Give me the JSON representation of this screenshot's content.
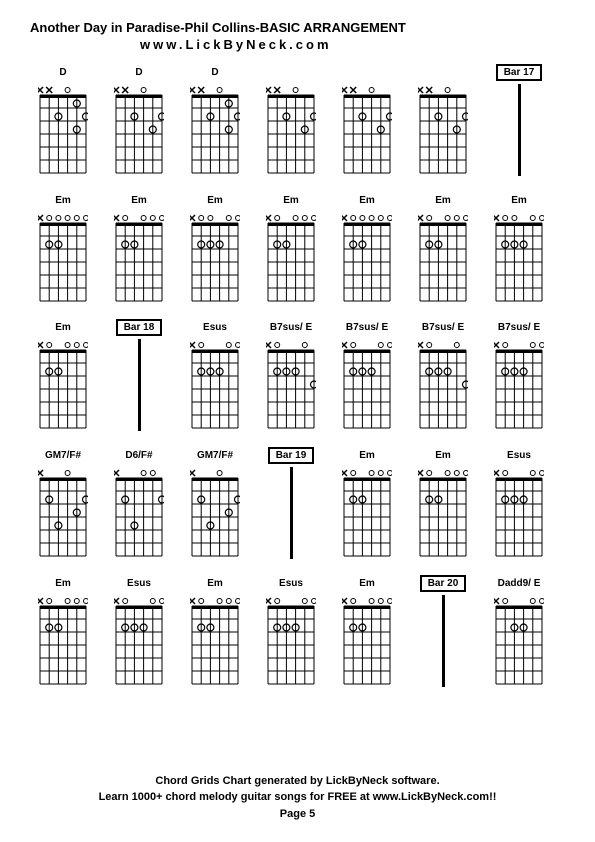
{
  "title": "Another Day in Paradise-Phil Collins-BASIC ARRANGEMENT",
  "subtitle": "www.LickByNeck.com",
  "footer": {
    "line1": "Chord Grids Chart generated by LickByNeck software.",
    "line2": "Learn 1000+ chord melody guitar songs for FREE at www.LickByNeck.com!!",
    "line3": "Page 5"
  },
  "diagram": {
    "width": 50,
    "height": 92,
    "strings": 6,
    "frets": 6,
    "line_color": "#000000",
    "dot_radius": 3.5,
    "mute_size": 6
  },
  "rows": [
    [
      {
        "type": "chord",
        "label": "D",
        "mutes": [
          0,
          1
        ],
        "opens": [
          3
        ],
        "dots": [
          [
            4,
            0
          ],
          [
            2,
            1
          ],
          [
            5,
            1
          ],
          [
            4,
            2
          ]
        ]
      },
      {
        "type": "chord",
        "label": "D",
        "mutes": [
          0,
          1
        ],
        "opens": [
          3
        ],
        "dots": [
          [
            2,
            1
          ],
          [
            5,
            1
          ],
          [
            4,
            2
          ]
        ]
      },
      {
        "type": "chord",
        "label": "D",
        "mutes": [
          0,
          1
        ],
        "opens": [
          3
        ],
        "dots": [
          [
            4,
            0
          ],
          [
            2,
            1
          ],
          [
            5,
            1
          ],
          [
            4,
            2
          ]
        ]
      },
      {
        "type": "chord",
        "label": "",
        "mutes": [
          0,
          1
        ],
        "opens": [
          3
        ],
        "dots": [
          [
            2,
            1
          ],
          [
            5,
            1
          ],
          [
            4,
            2
          ]
        ]
      },
      {
        "type": "chord",
        "label": "",
        "mutes": [
          0,
          1
        ],
        "opens": [
          3
        ],
        "dots": [
          [
            2,
            1
          ],
          [
            5,
            1
          ],
          [
            4,
            2
          ]
        ]
      },
      {
        "type": "chord",
        "label": "",
        "mutes": [
          0,
          1
        ],
        "opens": [
          3
        ],
        "dots": [
          [
            2,
            1
          ],
          [
            5,
            1
          ],
          [
            4,
            2
          ]
        ]
      },
      {
        "type": "bar",
        "label": "Bar 17"
      }
    ],
    [
      {
        "type": "chord",
        "label": "Em",
        "mutes": [
          0
        ],
        "opens": [
          1,
          2,
          3,
          4,
          5
        ],
        "dots": [
          [
            1,
            1
          ],
          [
            2,
            1
          ]
        ]
      },
      {
        "type": "chord",
        "label": "Em",
        "mutes": [
          0
        ],
        "opens": [
          1,
          3,
          4,
          5
        ],
        "dots": [
          [
            1,
            1
          ],
          [
            2,
            1
          ]
        ]
      },
      {
        "type": "chord",
        "label": "Em",
        "mutes": [
          0
        ],
        "opens": [
          1,
          2,
          4,
          5
        ],
        "dots": [
          [
            1,
            1
          ],
          [
            2,
            1
          ],
          [
            3,
            1
          ]
        ]
      },
      {
        "type": "chord",
        "label": "Em",
        "mutes": [
          0
        ],
        "opens": [
          1,
          3,
          4,
          5
        ],
        "dots": [
          [
            1,
            1
          ],
          [
            2,
            1
          ]
        ]
      },
      {
        "type": "chord",
        "label": "Em",
        "mutes": [
          0
        ],
        "opens": [
          1,
          2,
          3,
          4,
          5
        ],
        "dots": [
          [
            1,
            1
          ],
          [
            2,
            1
          ]
        ]
      },
      {
        "type": "chord",
        "label": "Em",
        "mutes": [
          0
        ],
        "opens": [
          1,
          3,
          4,
          5
        ],
        "dots": [
          [
            1,
            1
          ],
          [
            2,
            1
          ]
        ]
      },
      {
        "type": "chord",
        "label": "Em",
        "mutes": [
          0
        ],
        "opens": [
          1,
          2,
          4,
          5
        ],
        "dots": [
          [
            1,
            1
          ],
          [
            2,
            1
          ],
          [
            3,
            1
          ]
        ]
      }
    ],
    [
      {
        "type": "chord",
        "label": "Em",
        "mutes": [
          0
        ],
        "opens": [
          1,
          3,
          4,
          5
        ],
        "dots": [
          [
            1,
            1
          ],
          [
            2,
            1
          ]
        ]
      },
      {
        "type": "bar",
        "label": "Bar 18"
      },
      {
        "type": "chord",
        "label": "Esus",
        "mutes": [
          0
        ],
        "opens": [
          1,
          4,
          5
        ],
        "dots": [
          [
            1,
            1
          ],
          [
            2,
            1
          ],
          [
            3,
            1
          ]
        ]
      },
      {
        "type": "chord",
        "label": "B7sus/ E",
        "mutes": [
          0
        ],
        "opens": [
          1,
          4
        ],
        "dots": [
          [
            1,
            1
          ],
          [
            2,
            1
          ],
          [
            3,
            1
          ],
          [
            5,
            2
          ]
        ]
      },
      {
        "type": "chord",
        "label": "B7sus/ E",
        "mutes": [
          0
        ],
        "opens": [
          1,
          4,
          5
        ],
        "dots": [
          [
            1,
            1
          ],
          [
            2,
            1
          ],
          [
            3,
            1
          ]
        ]
      },
      {
        "type": "chord",
        "label": "B7sus/ E",
        "mutes": [
          0
        ],
        "opens": [
          1,
          4
        ],
        "dots": [
          [
            1,
            1
          ],
          [
            2,
            1
          ],
          [
            3,
            1
          ],
          [
            5,
            2
          ]
        ]
      },
      {
        "type": "chord",
        "label": "B7sus/ E",
        "mutes": [
          0
        ],
        "opens": [
          1,
          4,
          5
        ],
        "dots": [
          [
            1,
            1
          ],
          [
            2,
            1
          ],
          [
            3,
            1
          ]
        ]
      }
    ],
    [
      {
        "type": "chord",
        "label": "GM7/F#",
        "mutes": [
          0
        ],
        "opens": [
          3
        ],
        "dots": [
          [
            1,
            1
          ],
          [
            2,
            3
          ],
          [
            4,
            2
          ],
          [
            5,
            1
          ]
        ]
      },
      {
        "type": "chord",
        "label": "D6/F#",
        "mutes": [
          0
        ],
        "opens": [
          3,
          4
        ],
        "dots": [
          [
            1,
            1
          ],
          [
            2,
            3
          ],
          [
            5,
            1
          ]
        ]
      },
      {
        "type": "chord",
        "label": "GM7/F#",
        "mutes": [
          0
        ],
        "opens": [
          3
        ],
        "dots": [
          [
            1,
            1
          ],
          [
            2,
            3
          ],
          [
            4,
            2
          ],
          [
            5,
            1
          ]
        ]
      },
      {
        "type": "bar",
        "label": "Bar 19"
      },
      {
        "type": "chord",
        "label": "Em",
        "mutes": [
          0
        ],
        "opens": [
          1,
          3,
          4,
          5
        ],
        "dots": [
          [
            1,
            1
          ],
          [
            2,
            1
          ]
        ]
      },
      {
        "type": "chord",
        "label": "Em",
        "mutes": [
          0
        ],
        "opens": [
          1,
          3,
          4,
          5
        ],
        "dots": [
          [
            1,
            1
          ],
          [
            2,
            1
          ]
        ]
      },
      {
        "type": "chord",
        "label": "Esus",
        "mutes": [
          0
        ],
        "opens": [
          1,
          4,
          5
        ],
        "dots": [
          [
            1,
            1
          ],
          [
            2,
            1
          ],
          [
            3,
            1
          ]
        ]
      }
    ],
    [
      {
        "type": "chord",
        "label": "Em",
        "mutes": [
          0
        ],
        "opens": [
          1,
          3,
          4,
          5
        ],
        "dots": [
          [
            1,
            1
          ],
          [
            2,
            1
          ]
        ]
      },
      {
        "type": "chord",
        "label": "Esus",
        "mutes": [
          0
        ],
        "opens": [
          1,
          4,
          5
        ],
        "dots": [
          [
            1,
            1
          ],
          [
            2,
            1
          ],
          [
            3,
            1
          ]
        ]
      },
      {
        "type": "chord",
        "label": "Em",
        "mutes": [
          0
        ],
        "opens": [
          1,
          3,
          4,
          5
        ],
        "dots": [
          [
            1,
            1
          ],
          [
            2,
            1
          ]
        ]
      },
      {
        "type": "chord",
        "label": "Esus",
        "mutes": [
          0
        ],
        "opens": [
          1,
          4,
          5
        ],
        "dots": [
          [
            1,
            1
          ],
          [
            2,
            1
          ],
          [
            3,
            1
          ]
        ]
      },
      {
        "type": "chord",
        "label": "Em",
        "mutes": [
          0
        ],
        "opens": [
          1,
          3,
          4,
          5
        ],
        "dots": [
          [
            1,
            1
          ],
          [
            2,
            1
          ]
        ]
      },
      {
        "type": "bar",
        "label": "Bar 20"
      },
      {
        "type": "chord",
        "label": "Dadd9/ E",
        "mutes": [
          0
        ],
        "opens": [
          1,
          4,
          5
        ],
        "dots": [
          [
            2,
            1
          ],
          [
            3,
            1
          ]
        ]
      }
    ]
  ]
}
